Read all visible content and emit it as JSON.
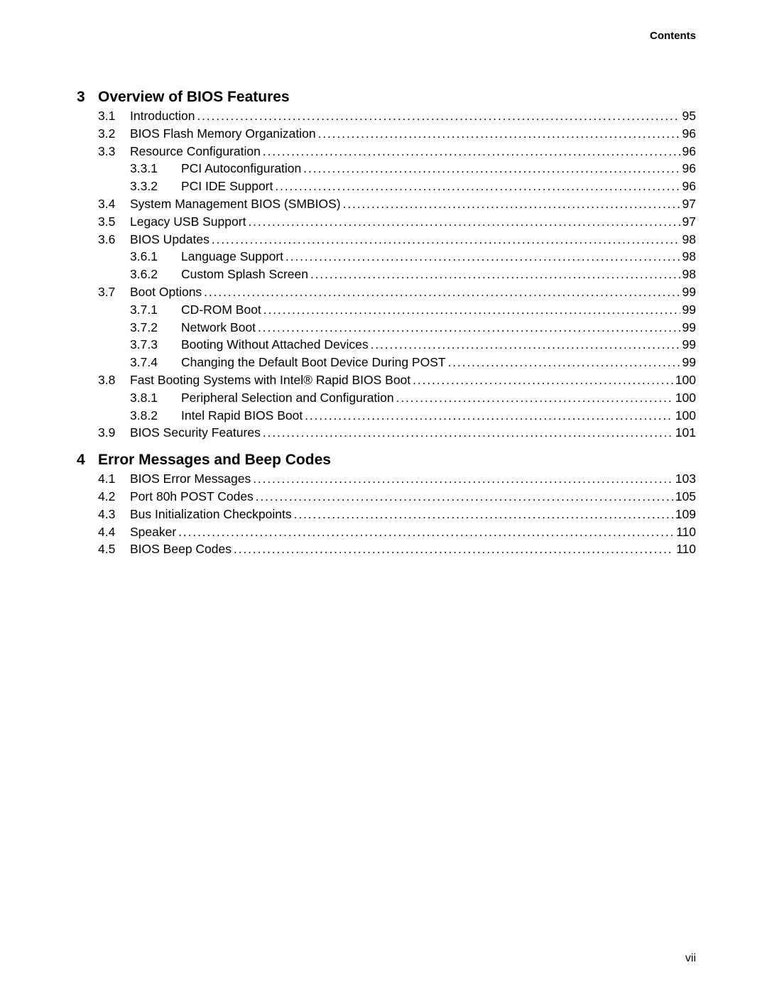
{
  "header": {
    "label": "Contents"
  },
  "footer": {
    "page": "vii"
  },
  "toc": [
    {
      "type": "chapter",
      "num": "3",
      "title": "Overview of BIOS Features"
    },
    {
      "type": "section",
      "num": "3.1",
      "title": "Introduction",
      "page": "95"
    },
    {
      "type": "section",
      "num": "3.2",
      "title": "BIOS Flash Memory Organization",
      "page": "96"
    },
    {
      "type": "section",
      "num": "3.3",
      "title": "Resource Configuration",
      "page": "96"
    },
    {
      "type": "subsection",
      "num": "3.3.1",
      "title": "PCI Autoconfiguration",
      "page": "96"
    },
    {
      "type": "subsection",
      "num": "3.3.2",
      "title": "PCI IDE Support",
      "page": "96"
    },
    {
      "type": "section",
      "num": "3.4",
      "title": "System Management BIOS (SMBIOS)",
      "page": "97"
    },
    {
      "type": "section",
      "num": "3.5",
      "title": "Legacy USB Support",
      "page": "97"
    },
    {
      "type": "section",
      "num": "3.6",
      "title": "BIOS Updates",
      "page": "98"
    },
    {
      "type": "subsection",
      "num": "3.6.1",
      "title": "Language Support",
      "page": "98"
    },
    {
      "type": "subsection",
      "num": "3.6.2",
      "title": "Custom Splash Screen",
      "page": "98"
    },
    {
      "type": "section",
      "num": "3.7",
      "title": "Boot Options",
      "page": "99"
    },
    {
      "type": "subsection",
      "num": "3.7.1",
      "title": "CD-ROM Boot",
      "page": "99"
    },
    {
      "type": "subsection",
      "num": "3.7.2",
      "title": "Network Boot",
      "page": "99"
    },
    {
      "type": "subsection",
      "num": "3.7.3",
      "title": "Booting Without Attached Devices",
      "page": "99"
    },
    {
      "type": "subsection",
      "num": "3.7.4",
      "title": "Changing the Default Boot Device During POST",
      "page": "99"
    },
    {
      "type": "section",
      "num": "3.8",
      "title": "Fast Booting Systems with Intel® Rapid BIOS Boot",
      "page": "100"
    },
    {
      "type": "subsection",
      "num": "3.8.1",
      "title": "Peripheral Selection and Configuration",
      "page": "100"
    },
    {
      "type": "subsection",
      "num": "3.8.2",
      "title": "Intel Rapid BIOS Boot",
      "page": "100"
    },
    {
      "type": "section",
      "num": "3.9",
      "title": "BIOS Security Features",
      "page": "101"
    },
    {
      "type": "chapter",
      "num": "4",
      "title": "Error Messages and Beep Codes"
    },
    {
      "type": "section",
      "num": "4.1",
      "title": "BIOS Error Messages",
      "page": "103"
    },
    {
      "type": "section",
      "num": "4.2",
      "title": "Port 80h POST Codes",
      "page": "105"
    },
    {
      "type": "section",
      "num": "4.3",
      "title": "Bus Initialization Checkpoints",
      "page": "109"
    },
    {
      "type": "section",
      "num": "4.4",
      "title": "Speaker",
      "page": "110"
    },
    {
      "type": "section",
      "num": "4.5",
      "title": "BIOS Beep Codes",
      "page": "110"
    }
  ]
}
